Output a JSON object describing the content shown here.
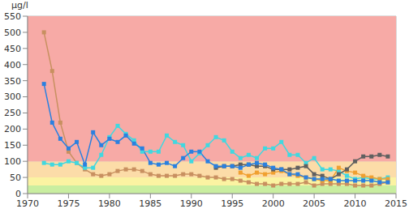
{
  "chart_data": {
    "type": "line",
    "y_label": "µg/l",
    "grid": true,
    "marker": "square",
    "xlim": [
      1970,
      2015
    ],
    "xticks": [
      1970,
      1975,
      1980,
      1985,
      1990,
      1995,
      2000,
      2005,
      2010,
      2015
    ],
    "ylim": [
      0,
      550
    ],
    "yticks": [
      0,
      50,
      100,
      150,
      200,
      250,
      300,
      350,
      400,
      450,
      500,
      550
    ],
    "bands": [
      {
        "from": 0,
        "to": 25,
        "color": "#c9eea0"
      },
      {
        "from": 25,
        "to": 50,
        "color": "#fbf3a2"
      },
      {
        "from": 50,
        "to": 100,
        "color": "#fcdca8"
      },
      {
        "from": 100,
        "to": 550,
        "color": "#f7aaa6"
      }
    ],
    "x": [
      1972,
      1973,
      1974,
      1975,
      1976,
      1977,
      1978,
      1979,
      1980,
      1981,
      1982,
      1983,
      1984,
      1985,
      1986,
      1987,
      1988,
      1989,
      1990,
      1991,
      1992,
      1993,
      1994,
      1995,
      1996,
      1997,
      1998,
      1999,
      2000,
      2001,
      2002,
      2003,
      2004,
      2005,
      2006,
      2007,
      2008,
      2009,
      2010,
      2011,
      2012,
      2013,
      2014
    ],
    "series": [
      {
        "color": "#c89060",
        "values": [
          500,
          380,
          220,
          130,
          95,
          75,
          60,
          55,
          60,
          70,
          75,
          75,
          70,
          60,
          55,
          55,
          55,
          60,
          60,
          55,
          50,
          50,
          45,
          45,
          40,
          35,
          30,
          30,
          25,
          30,
          30,
          30,
          35,
          25,
          30,
          30,
          30,
          30,
          25,
          25,
          25,
          30,
          35
        ]
      },
      {
        "color": "#40d8e0",
        "values": [
          95,
          90,
          90,
          100,
          95,
          80,
          80,
          120,
          175,
          210,
          185,
          165,
          130,
          130,
          130,
          180,
          160,
          150,
          100,
          125,
          150,
          175,
          165,
          130,
          110,
          120,
          110,
          140,
          140,
          160,
          120,
          120,
          95,
          110,
          75,
          75,
          70,
          55,
          45,
          50,
          45,
          45,
          50
        ]
      },
      {
        "color": "#f0a030",
        "values": [
          null,
          null,
          null,
          null,
          null,
          null,
          null,
          null,
          null,
          null,
          null,
          null,
          null,
          null,
          null,
          null,
          null,
          null,
          null,
          null,
          null,
          null,
          null,
          null,
          65,
          55,
          65,
          60,
          65,
          70,
          60,
          55,
          50,
          45,
          40,
          40,
          80,
          70,
          65,
          55,
          50,
          45,
          45
        ]
      },
      {
        "color": "#606060",
        "values": [
          null,
          null,
          null,
          null,
          null,
          null,
          null,
          null,
          null,
          null,
          null,
          null,
          null,
          null,
          null,
          null,
          null,
          null,
          null,
          null,
          null,
          80,
          85,
          85,
          90,
          90,
          85,
          85,
          75,
          75,
          75,
          80,
          85,
          60,
          55,
          45,
          60,
          75,
          100,
          115,
          115,
          120,
          115
        ]
      },
      {
        "color": "#2a80e0",
        "values": [
          340,
          220,
          170,
          140,
          160,
          90,
          190,
          150,
          170,
          160,
          180,
          155,
          140,
          95,
          90,
          95,
          85,
          110,
          130,
          130,
          100,
          85,
          85,
          85,
          80,
          90,
          95,
          90,
          80,
          75,
          60,
          60,
          50,
          45,
          45,
          45,
          40,
          40,
          40,
          40,
          40,
          35,
          35
        ]
      }
    ]
  }
}
